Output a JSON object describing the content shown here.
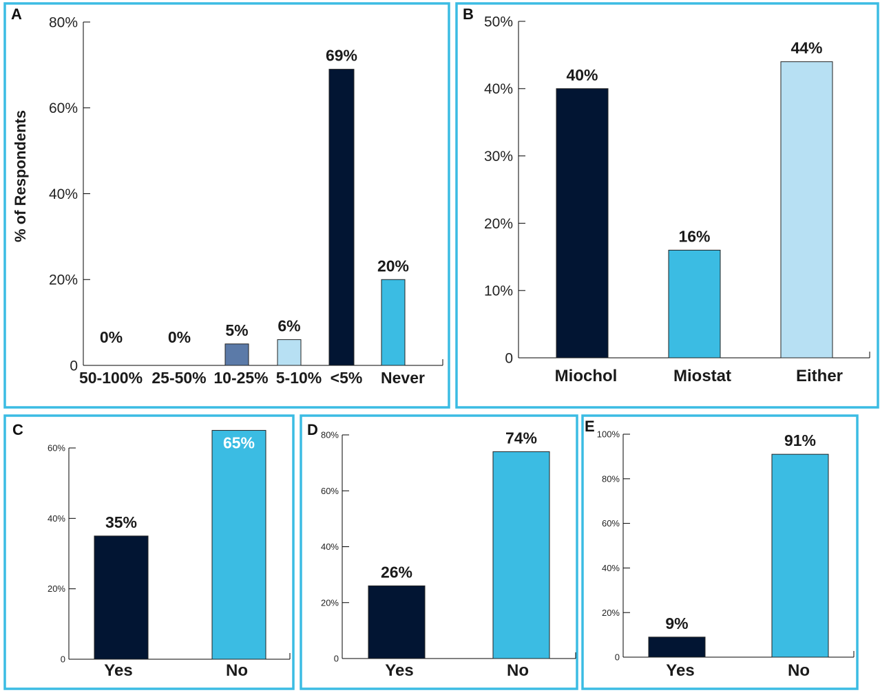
{
  "colors": {
    "frame": "#3bbce3",
    "navy": "#021533",
    "steel_blue": "#5b7aa8",
    "light_blue": "#b7e0f3",
    "cyan": "#3bbce3"
  },
  "chart_data": [
    {
      "panel": "A",
      "type": "bar",
      "ylabel": "% of Respondents",
      "ylim": [
        0,
        80
      ],
      "yticks": [
        "0",
        "20%",
        "40%",
        "60%",
        "80%"
      ],
      "categories": [
        "50-100%",
        "25-50%",
        "10-25%",
        "5-10%",
        "<5%",
        "Never"
      ],
      "values": [
        0,
        0,
        5,
        6,
        69,
        20
      ],
      "data_labels": [
        "0%",
        "0%",
        "5%",
        "6%",
        "69%",
        "20%"
      ],
      "bar_colors": [
        "#021533",
        "#021533",
        "#5b7aa8",
        "#b7e0f3",
        "#021533",
        "#3bbce3"
      ],
      "grid": false
    },
    {
      "panel": "B",
      "type": "bar",
      "ylim": [
        0,
        50
      ],
      "yticks": [
        "0",
        "10%",
        "20%",
        "30%",
        "40%",
        "50%"
      ],
      "categories": [
        "Miochol",
        "Miostat",
        "Either"
      ],
      "values": [
        40,
        16,
        44
      ],
      "data_labels": [
        "40%",
        "16%",
        "44%"
      ],
      "bar_colors": [
        "#021533",
        "#3bbce3",
        "#b7e0f3"
      ],
      "grid": false
    },
    {
      "panel": "C",
      "type": "bar",
      "ylim": [
        0,
        60
      ],
      "yticks": [
        "0",
        "20%",
        "40%",
        "60%"
      ],
      "categories": [
        "Yes",
        "No"
      ],
      "values": [
        35,
        65
      ],
      "data_labels": [
        "35%",
        "65%"
      ],
      "bar_colors": [
        "#021533",
        "#3bbce3"
      ],
      "grid": false
    },
    {
      "panel": "D",
      "type": "bar",
      "ylim": [
        0,
        80
      ],
      "yticks": [
        "0",
        "20%",
        "40%",
        "60%",
        "80%"
      ],
      "categories": [
        "Yes",
        "No"
      ],
      "values": [
        26,
        74
      ],
      "data_labels": [
        "26%",
        "74%"
      ],
      "bar_colors": [
        "#021533",
        "#3bbce3"
      ],
      "grid": false
    },
    {
      "panel": "E",
      "type": "bar",
      "ylim": [
        0,
        100
      ],
      "yticks": [
        "0",
        "20%",
        "40%",
        "60%",
        "80%",
        "100%"
      ],
      "categories": [
        "Yes",
        "No"
      ],
      "values": [
        9,
        91
      ],
      "data_labels": [
        "9%",
        "91%"
      ],
      "bar_colors": [
        "#021533",
        "#3bbce3"
      ],
      "grid": false
    }
  ]
}
